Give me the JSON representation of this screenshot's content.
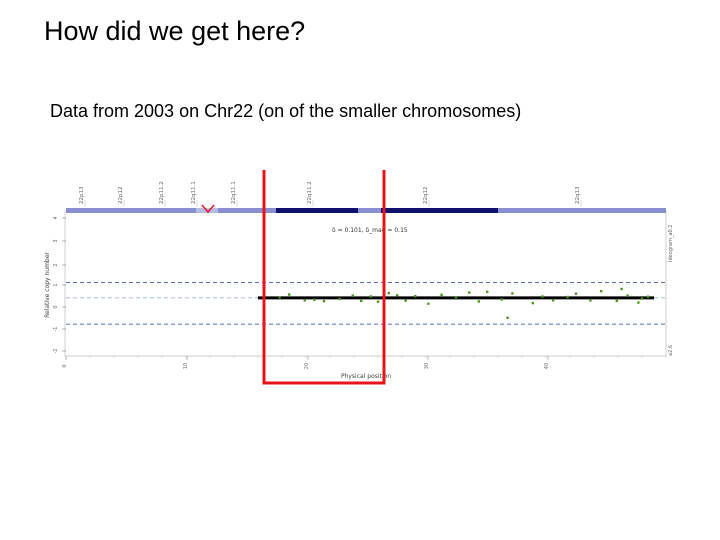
{
  "slide": {
    "title": "How did we get here?",
    "subtitle": "Data from 2003 on Chr22 (on of the smaller chromosomes)"
  },
  "colors": {
    "highlight_box": "#e8141b",
    "data_points": "#4a9a1c",
    "segment_line": "#000000",
    "ideogram_dark": "#10106e",
    "ideogram_light": "#8a8fd0",
    "threshold_dashed": "#2a3fa0"
  },
  "chart_data": {
    "type": "scatter",
    "band_labels": [
      "22p13",
      "22p12",
      "22p11.2",
      "22q11.1",
      "22q11.1",
      "22q11.2",
      "22q12",
      "22q13"
    ],
    "side_labels": {
      "top": "Ideogram_a0.2",
      "bottom": "a2.6"
    },
    "annotation": "δ = 0.101, δ_mad = 0.15",
    "ylabel": "Relative copy number",
    "xlabel": "Physical position",
    "x_ticks": [
      "0",
      "10",
      "20",
      "30",
      "40"
    ],
    "y_ticks": [
      "4",
      "3",
      "2",
      "1",
      "0",
      "-1",
      "-2"
    ],
    "xlim": [
      0,
      50
    ],
    "ylim": [
      -2.1,
      3.1
    ],
    "dashed_lines": [
      0.55,
      0,
      -0.95
    ],
    "segment": {
      "x_start": 16,
      "x_end": 49,
      "y": 0
    },
    "highlight_x_range": [
      16.5,
      26.5
    ],
    "points": [
      {
        "x": 17.8,
        "y": 0.02
      },
      {
        "x": 18.6,
        "y": 0.12
      },
      {
        "x": 19.9,
        "y": -0.09
      },
      {
        "x": 20.7,
        "y": -0.07
      },
      {
        "x": 21.5,
        "y": -0.12
      },
      {
        "x": 22.8,
        "y": -0.04
      },
      {
        "x": 23.9,
        "y": 0.08
      },
      {
        "x": 24.6,
        "y": -0.11
      },
      {
        "x": 25.4,
        "y": 0.05
      },
      {
        "x": 26.0,
        "y": -0.14
      },
      {
        "x": 26.9,
        "y": 0.17
      },
      {
        "x": 27.6,
        "y": 0.09
      },
      {
        "x": 28.3,
        "y": -0.1
      },
      {
        "x": 29.1,
        "y": 0.06
      },
      {
        "x": 30.2,
        "y": -0.21
      },
      {
        "x": 31.3,
        "y": 0.11
      },
      {
        "x": 32.5,
        "y": 0.02
      },
      {
        "x": 33.6,
        "y": 0.19
      },
      {
        "x": 34.4,
        "y": -0.13
      },
      {
        "x": 35.1,
        "y": 0.22
      },
      {
        "x": 36.3,
        "y": -0.06
      },
      {
        "x": 37.2,
        "y": 0.16
      },
      {
        "x": 38.9,
        "y": -0.19
      },
      {
        "x": 39.7,
        "y": 0.05
      },
      {
        "x": 40.6,
        "y": -0.09
      },
      {
        "x": 41.8,
        "y": 0.03
      },
      {
        "x": 42.5,
        "y": 0.15
      },
      {
        "x": 43.7,
        "y": -0.09
      },
      {
        "x": 44.6,
        "y": 0.24
      },
      {
        "x": 45.9,
        "y": -0.11
      },
      {
        "x": 46.8,
        "y": 0.08
      },
      {
        "x": 47.7,
        "y": -0.17
      },
      {
        "x": 48.5,
        "y": 0.04
      },
      {
        "x": 36.8,
        "y": -0.72
      },
      {
        "x": 46.3,
        "y": 0.32
      },
      {
        "x": 48.0,
        "y": -0.03
      }
    ]
  }
}
